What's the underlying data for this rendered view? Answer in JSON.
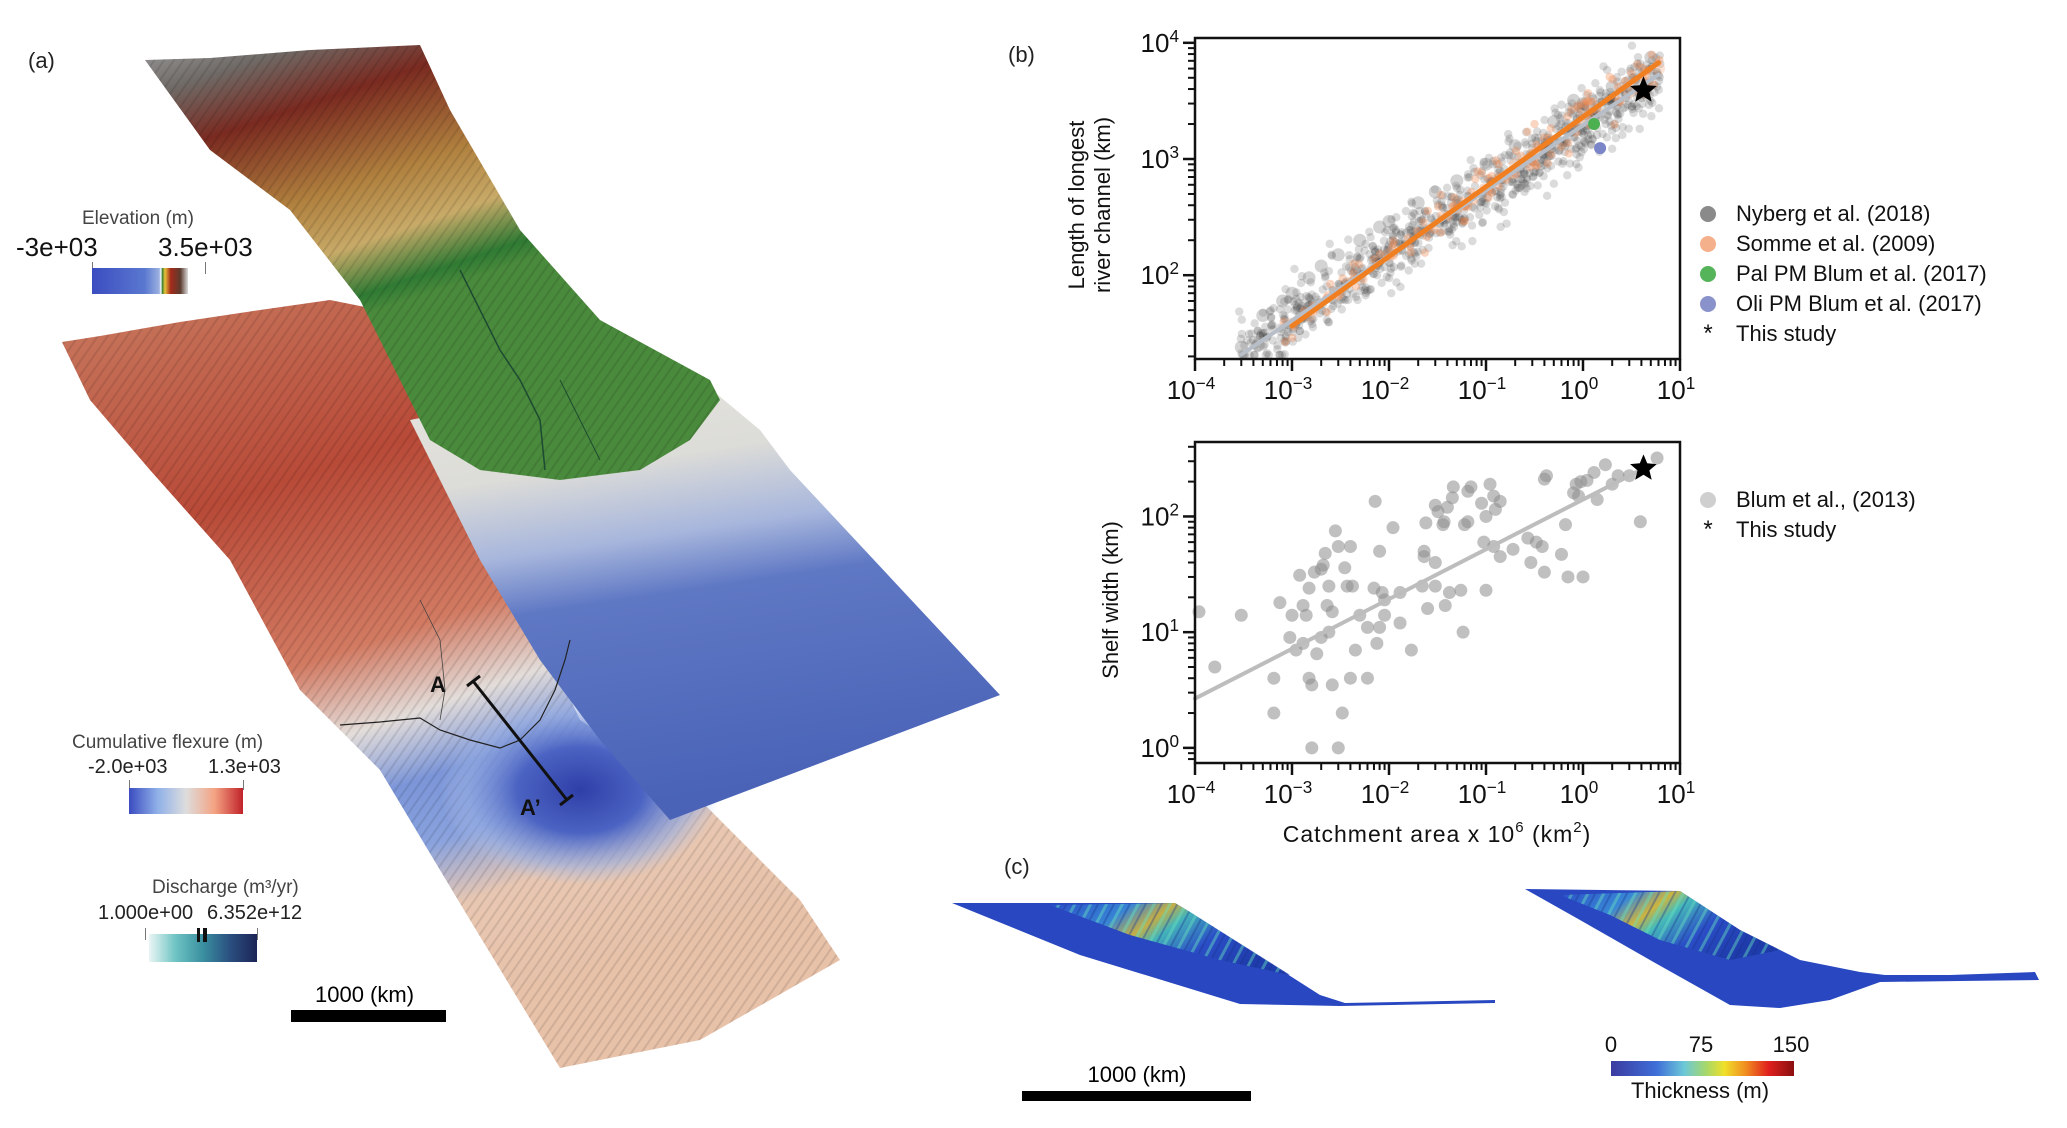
{
  "panels": {
    "a_label": "(a)",
    "b_label": "(b)",
    "c_label": "(c)"
  },
  "panel_a": {
    "elevation_colorbar": {
      "title": "Elevation (m)",
      "min_label": "-3e+03",
      "max_label": "3.5e+03",
      "colors": [
        "#3b4cc0",
        "#5a78d0",
        "#9ab0e0",
        "#2e7d32",
        "#e8c13a",
        "#a42a1a",
        "#5b3b2e",
        "#b8b8b8"
      ]
    },
    "flexure_colorbar": {
      "title": "Cumulative flexure (m)",
      "min_label": "-2.0e+03",
      "max_label": "1.3e+03",
      "colors": [
        "#3b4cc0",
        "#8fb0e8",
        "#dddddd",
        "#f4a383",
        "#c1222a"
      ]
    },
    "discharge_colorbar": {
      "title": "Discharge (m³/yr)",
      "min_label": "1.000e+00",
      "max_label": "6.352e+12",
      "colors": [
        "#eaf6f5",
        "#6cc3c2",
        "#3a8fa0",
        "#2a4f80",
        "#1c2456"
      ]
    },
    "section_start_label": "A",
    "section_end_label": "A’",
    "scalebar_label": "1000 (km)",
    "colors": {
      "ocean": "#4a63b7",
      "shelf": "#e4e2dc",
      "coastal_plain": "#4a8a3c",
      "highland": "#c9a863",
      "mountain": "#8a2a1e",
      "peak": "#8d8d8d",
      "flexure_red": "#c9624a",
      "flexure_blue": "#3a4fb0",
      "flexure_tan": "#e8c2a8"
    }
  },
  "panel_c": {
    "scalebar_label": "1000 (km)",
    "thickness_colorbar": {
      "title": "Thickness (m)",
      "tick_labels": [
        "0",
        "75",
        "150"
      ],
      "colors": [
        "#3b3ba0",
        "#3f6fd8",
        "#6cc8d8",
        "#a6d86a",
        "#f0e02a",
        "#f08a20",
        "#e0201e",
        "#8a0f10"
      ]
    }
  },
  "chart_data": [
    {
      "type": "scatter",
      "title": "",
      "xlabel": "",
      "ylabel": "Length of longest river channel (km)",
      "ylabel_lines": [
        "Length of longest",
        "river channel (km)"
      ],
      "xscale": "log",
      "yscale": "log",
      "xlim": [
        0.0001,
        10
      ],
      "ylim": [
        19,
        11000
      ],
      "x_tick_labels": [
        {
          "base": "10",
          "exp": "−4"
        },
        {
          "base": "10",
          "exp": "−3"
        },
        {
          "base": "10",
          "exp": "−2"
        },
        {
          "base": "10",
          "exp": "−1"
        },
        {
          "base": "10",
          "exp": "0"
        },
        {
          "base": "10",
          "exp": "1"
        }
      ],
      "x_tick_values": [
        0.0001,
        0.001,
        0.01,
        0.1,
        1,
        10
      ],
      "y_tick_labels": [
        {
          "base": "10",
          "exp": "2"
        },
        {
          "base": "10",
          "exp": "3"
        },
        {
          "base": "10",
          "exp": "4"
        }
      ],
      "y_tick_values": [
        100,
        1000,
        10000
      ],
      "grid": false,
      "legend_position": "right",
      "series": [
        {
          "name": "Nyberg et al. (2018)",
          "color": "#6e6e6e",
          "marker": "circle",
          "fit": {
            "slope": 0.56,
            "intercept_at_x1": 1950,
            "x_range": [
              0.0003,
              6
            ]
          },
          "fit_color": "#b8bec8",
          "cloud": {
            "count": 900,
            "x_log_range": [
              -3.55,
              0.8
            ],
            "scatter_sd_log": 0.14
          },
          "points": [
            [
              0.0003,
              24
            ],
            [
              0.00045,
              25
            ],
            [
              0.0005,
              45
            ],
            [
              0.0008,
              60
            ],
            [
              0.001,
              70
            ],
            [
              0.0015,
              95
            ],
            [
              0.002,
              120
            ],
            [
              0.003,
              150
            ],
            [
              0.005,
              200
            ],
            [
              0.008,
              260
            ],
            [
              0.01,
              290
            ],
            [
              0.02,
              420
            ],
            [
              0.03,
              520
            ],
            [
              0.05,
              650
            ],
            [
              0.1,
              900
            ],
            [
              0.2,
              1300
            ],
            [
              0.5,
              2100
            ],
            [
              1,
              3000
            ],
            [
              0.8,
              3200
            ],
            [
              2,
              4200
            ],
            [
              5,
              7500
            ]
          ]
        },
        {
          "name": "Somme et al. (2009)",
          "color": "#f4a77a",
          "marker": "circle",
          "fit": {
            "slope": 0.6,
            "intercept_at_x1": 2300,
            "x_range": [
              0.001,
              6
            ]
          },
          "fit_color": "#f07f22",
          "cloud": {
            "count": 140,
            "x_log_range": [
              -3.1,
              0.8
            ],
            "scatter_sd_log": 0.1
          },
          "points": [
            [
              0.0015,
              45
            ],
            [
              0.003,
              70
            ],
            [
              0.01,
              150
            ],
            [
              0.05,
              380
            ],
            [
              0.2,
              900
            ],
            [
              1,
              2300
            ],
            [
              3,
              3800
            ],
            [
              6,
              6000
            ]
          ]
        },
        {
          "name": "Pal PM Blum et al. (2017)",
          "color": "#4caf50",
          "marker": "circle",
          "points": [
            [
              1.3,
              2000
            ]
          ]
        },
        {
          "name": "Oli PM Blum et al. (2017)",
          "color": "#7b86c8",
          "marker": "circle",
          "points": [
            [
              1.5,
              1240
            ]
          ]
        },
        {
          "name": "This study",
          "color": "#000000",
          "marker": "star",
          "points": [
            [
              4.2,
              3900
            ]
          ]
        }
      ]
    },
    {
      "type": "scatter",
      "title": "",
      "xlabel": "Catchment area x 10^6 (km^2)",
      "xlabel_parts": {
        "pre": "Catchment area x 10",
        "sup1": "6",
        "mid": " (km",
        "sup2": "2",
        "post": ")"
      },
      "ylabel": "Shelf width (km)",
      "xscale": "log",
      "yscale": "log",
      "xlim": [
        0.0001,
        10
      ],
      "ylim": [
        0.74,
        440
      ],
      "x_tick_labels": [
        {
          "base": "10",
          "exp": "−4"
        },
        {
          "base": "10",
          "exp": "−3"
        },
        {
          "base": "10",
          "exp": "−2"
        },
        {
          "base": "10",
          "exp": "−1"
        },
        {
          "base": "10",
          "exp": "0"
        },
        {
          "base": "10",
          "exp": "1"
        }
      ],
      "x_tick_values": [
        0.0001,
        0.001,
        0.01,
        0.1,
        1,
        10
      ],
      "y_tick_labels": [
        {
          "base": "10",
          "exp": "0"
        },
        {
          "base": "10",
          "exp": "1"
        },
        {
          "base": "10",
          "exp": "2"
        }
      ],
      "y_tick_values": [
        1,
        10,
        100
      ],
      "grid": false,
      "legend_position": "right",
      "series": [
        {
          "name": "Blum et al., (2013)",
          "color": "#9a9a9a",
          "marker": "circle",
          "fit": {
            "slope": 0.43,
            "intercept_at_x1": 140,
            "x_range": [
              0.0001,
              4.2
            ]
          },
          "fit_color": "#bdbdbd",
          "points": [
            [
              0.0001,
              15
            ],
            [
              0.00016,
              5
            ],
            [
              0.0003,
              14
            ],
            [
              0.00065,
              4
            ],
            [
              0.00065,
              2
            ],
            [
              0.00075,
              18
            ],
            [
              0.00095,
              9
            ],
            [
              0.001,
              14
            ],
            [
              0.0011,
              7
            ],
            [
              0.0012,
              31
            ],
            [
              0.0013,
              17
            ],
            [
              0.0013,
              8
            ],
            [
              0.0014,
              14
            ],
            [
              0.0015,
              24
            ],
            [
              0.0015,
              4
            ],
            [
              0.0016,
              3.5
            ],
            [
              0.0016,
              1
            ],
            [
              0.0017,
              33
            ],
            [
              0.0018,
              6.5
            ],
            [
              0.002,
              9
            ],
            [
              0.002,
              35
            ],
            [
              0.0021,
              38
            ],
            [
              0.0022,
              48
            ],
            [
              0.0023,
              17
            ],
            [
              0.0024,
              25
            ],
            [
              0.0024,
              10
            ],
            [
              0.0026,
              15
            ],
            [
              0.0026,
              3.5
            ],
            [
              0.0028,
              75
            ],
            [
              0.003,
              1
            ],
            [
              0.003,
              55
            ],
            [
              0.0033,
              2
            ],
            [
              0.0035,
              36
            ],
            [
              0.0037,
              25
            ],
            [
              0.004,
              55
            ],
            [
              0.004,
              4
            ],
            [
              0.0042,
              25
            ],
            [
              0.0045,
              7
            ],
            [
              0.005,
              14
            ],
            [
              0.006,
              11
            ],
            [
              0.006,
              4
            ],
            [
              0.007,
              24
            ],
            [
              0.0072,
              135
            ],
            [
              0.0075,
              8
            ],
            [
              0.008,
              50
            ],
            [
              0.008,
              11
            ],
            [
              0.0085,
              22
            ],
            [
              0.009,
              19
            ],
            [
              0.009,
              14
            ],
            [
              0.011,
              80
            ],
            [
              0.013,
              22
            ],
            [
              0.013,
              12
            ],
            [
              0.017,
              7
            ],
            [
              0.022,
              25
            ],
            [
              0.023,
              50
            ],
            [
              0.023,
              45
            ],
            [
              0.024,
              88
            ],
            [
              0.025,
              16
            ],
            [
              0.03,
              25
            ],
            [
              0.03,
              40
            ],
            [
              0.03,
              125
            ],
            [
              0.032,
              110
            ],
            [
              0.036,
              85
            ],
            [
              0.037,
              90
            ],
            [
              0.038,
              17
            ],
            [
              0.04,
              120
            ],
            [
              0.042,
              22
            ],
            [
              0.045,
              145
            ],
            [
              0.046,
              180
            ],
            [
              0.055,
              23
            ],
            [
              0.058,
              10
            ],
            [
              0.06,
              85
            ],
            [
              0.065,
              90
            ],
            [
              0.065,
              165
            ],
            [
              0.07,
              180
            ],
            [
              0.09,
              130
            ],
            [
              0.095,
              60
            ],
            [
              0.1,
              100
            ],
            [
              0.1,
              23
            ],
            [
              0.11,
              190
            ],
            [
              0.12,
              150
            ],
            [
              0.12,
              55
            ],
            [
              0.125,
              115
            ],
            [
              0.14,
              45
            ],
            [
              0.14,
              135
            ],
            [
              0.19,
              52
            ],
            [
              0.27,
              65
            ],
            [
              0.29,
              40
            ],
            [
              0.33,
              60
            ],
            [
              0.38,
              55
            ],
            [
              0.4,
              33
            ],
            [
              0.4,
              210
            ],
            [
              0.42,
              225
            ],
            [
              0.6,
              47
            ],
            [
              0.66,
              85
            ],
            [
              0.7,
              30
            ],
            [
              0.8,
              160
            ],
            [
              0.85,
              190
            ],
            [
              0.9,
              150
            ],
            [
              0.95,
              200
            ],
            [
              1,
              30
            ],
            [
              1.1,
              205
            ],
            [
              1.3,
              240
            ],
            [
              1.4,
              140
            ],
            [
              1.7,
              280
            ],
            [
              2,
              190
            ],
            [
              2.3,
              225
            ],
            [
              3,
              225
            ],
            [
              3.9,
              90
            ],
            [
              5.8,
              320
            ]
          ]
        },
        {
          "name": "This study",
          "color": "#000000",
          "marker": "star",
          "points": [
            [
              4.2,
              260
            ]
          ]
        }
      ]
    }
  ]
}
